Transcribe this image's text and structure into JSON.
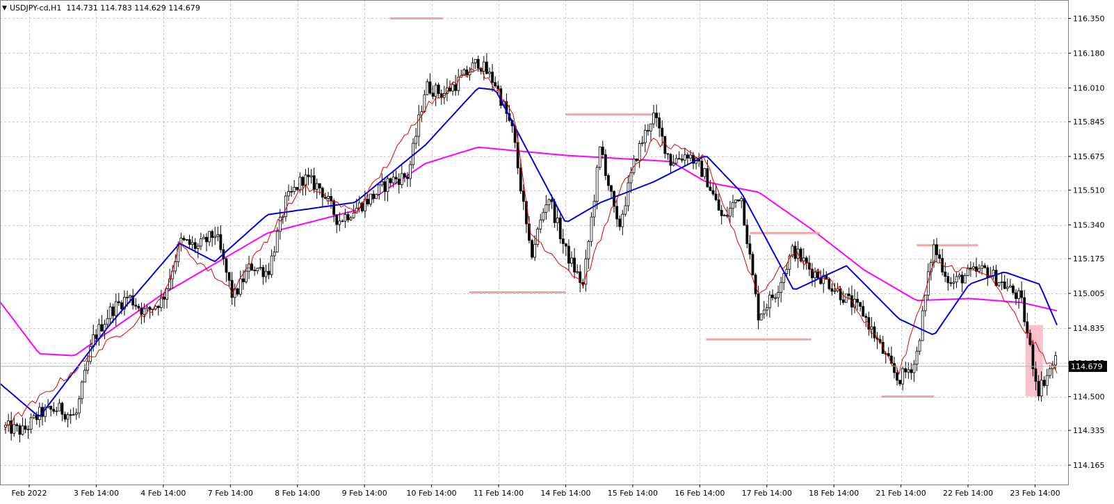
{
  "window": {
    "symbol_line": "USDJPY-cd,H1  114.731 114.783 114.629 114.679",
    "menu_glyph": "▼"
  },
  "colors": {
    "background": "#ffffff",
    "grid": "#c8c8c8",
    "candle": "#000000",
    "ma_fast": "#e00000",
    "ma_mid": "#0000e0",
    "ma_slow": "#ff00ff",
    "level_marker": "#f4a4a4",
    "highlight_box": "#f7b8c6",
    "price_tag_bg": "#000000",
    "price_tag_text": "#ffffff"
  },
  "price_axis": {
    "labels": [
      "116.350",
      "116.180",
      "116.010",
      "115.845",
      "115.675",
      "115.510",
      "115.340",
      "115.175",
      "115.005",
      "114.835",
      "114.665",
      "114.500",
      "114.335",
      "114.165"
    ],
    "current_price_label": "114.679"
  },
  "time_axis": {
    "labels": [
      "Feb 2022",
      "3 Feb 14:00",
      "4 Feb 14:00",
      "7 Feb 14:00",
      "8 Feb 14:00",
      "9 Feb 14:00",
      "10 Feb 14:00",
      "11 Feb 14:00",
      "14 Feb 14:00",
      "15 Feb 14:00",
      "16 Feb 14:00",
      "17 Feb 14:00",
      "18 Feb 14:00",
      "21 Feb 14:00",
      "22 Feb 14:00",
      "23 Feb 14:00"
    ]
  },
  "chart_data": {
    "type": "candlestick",
    "symbol": "USDJPY-cd",
    "timeframe": "H1",
    "last_bar": {
      "open": 114.731,
      "high": 114.783,
      "low": 114.629,
      "close": 114.679
    },
    "ylim": [
      114.07,
      116.44
    ],
    "grid": true,
    "price_path": [
      [
        0,
        114.35
      ],
      [
        1,
        114.33
      ],
      [
        2,
        114.42
      ],
      [
        3,
        114.44
      ],
      [
        4,
        114.4
      ],
      [
        5,
        114.78
      ],
      [
        6,
        114.92
      ],
      [
        7,
        114.99
      ],
      [
        8,
        114.91
      ],
      [
        9,
        114.98
      ],
      [
        10,
        115.26
      ],
      [
        11,
        115.23
      ],
      [
        12,
        115.3
      ],
      [
        13,
        114.98
      ],
      [
        14,
        115.14
      ],
      [
        15,
        115.11
      ],
      [
        16,
        115.45
      ],
      [
        17,
        115.57
      ],
      [
        18,
        115.52
      ],
      [
        19,
        115.36
      ],
      [
        20,
        115.42
      ],
      [
        21,
        115.48
      ],
      [
        22,
        115.56
      ],
      [
        23,
        115.58
      ],
      [
        24,
        116.02
      ],
      [
        25,
        115.98
      ],
      [
        26,
        116.05
      ],
      [
        27,
        116.14
      ],
      [
        28,
        116.03
      ],
      [
        29,
        115.79
      ],
      [
        30,
        115.18
      ],
      [
        31,
        115.49
      ],
      [
        32,
        115.21
      ],
      [
        33,
        115.04
      ],
      [
        34,
        115.73
      ],
      [
        35,
        115.31
      ],
      [
        36,
        115.67
      ],
      [
        37,
        115.88
      ],
      [
        38,
        115.65
      ],
      [
        39,
        115.69
      ],
      [
        40,
        115.58
      ],
      [
        41,
        115.36
      ],
      [
        42,
        115.5
      ],
      [
        43,
        114.9
      ],
      [
        44,
        115.01
      ],
      [
        45,
        115.22
      ],
      [
        46,
        115.12
      ],
      [
        47,
        115.06
      ],
      [
        48,
        114.98
      ],
      [
        49,
        114.91
      ],
      [
        50,
        114.74
      ],
      [
        51,
        114.58
      ],
      [
        52,
        114.67
      ],
      [
        53,
        115.24
      ],
      [
        54,
        115.05
      ],
      [
        55,
        115.1
      ],
      [
        56,
        115.12
      ],
      [
        57,
        115.05
      ],
      [
        58,
        114.98
      ],
      [
        59,
        114.53
      ],
      [
        60,
        114.68
      ]
    ],
    "moving_averages": [
      {
        "color": "#e00000",
        "values": [
          [
            0,
            114.35
          ],
          [
            5,
            114.7
          ],
          [
            9,
            114.97
          ],
          [
            10,
            115.24
          ],
          [
            13,
            115.02
          ],
          [
            17,
            115.53
          ],
          [
            20,
            115.4
          ],
          [
            24,
            115.92
          ],
          [
            27,
            116.12
          ],
          [
            29,
            115.9
          ],
          [
            30,
            115.3
          ],
          [
            33,
            115.05
          ],
          [
            35,
            115.5
          ],
          [
            37,
            115.75
          ],
          [
            40,
            115.66
          ],
          [
            43,
            115.0
          ],
          [
            45,
            115.2
          ],
          [
            48,
            115.0
          ],
          [
            51,
            114.62
          ],
          [
            53,
            115.15
          ],
          [
            56,
            115.1
          ],
          [
            59,
            114.72
          ],
          [
            60,
            114.62
          ]
        ]
      },
      {
        "color": "#0000e0",
        "values": [
          [
            -1,
            114.62
          ],
          [
            2,
            114.4
          ],
          [
            6,
            114.85
          ],
          [
            10,
            115.25
          ],
          [
            12,
            115.16
          ],
          [
            15,
            115.39
          ],
          [
            20,
            115.45
          ],
          [
            24,
            115.73
          ],
          [
            27,
            116.01
          ],
          [
            28,
            116.0
          ],
          [
            32,
            115.35
          ],
          [
            34,
            115.45
          ],
          [
            37,
            115.55
          ],
          [
            40,
            115.68
          ],
          [
            42,
            115.5
          ],
          [
            45,
            115.02
          ],
          [
            48,
            115.14
          ],
          [
            51,
            114.88
          ],
          [
            53,
            114.8
          ],
          [
            55,
            115.05
          ],
          [
            57,
            115.11
          ],
          [
            59,
            115.05
          ],
          [
            60,
            114.85
          ]
        ]
      },
      {
        "color": "#ff00ff",
        "values": [
          [
            -1,
            115.05
          ],
          [
            2,
            114.71
          ],
          [
            4,
            114.7
          ],
          [
            9,
            115.0
          ],
          [
            15,
            115.3
          ],
          [
            20,
            115.41
          ],
          [
            24,
            115.64
          ],
          [
            27,
            115.72
          ],
          [
            32,
            115.68
          ],
          [
            38,
            115.65
          ],
          [
            40,
            115.55
          ],
          [
            43,
            115.5
          ],
          [
            46,
            115.32
          ],
          [
            49,
            115.12
          ],
          [
            52,
            114.97
          ],
          [
            55,
            114.98
          ],
          [
            58,
            114.96
          ],
          [
            60,
            114.92
          ]
        ]
      }
    ],
    "horizontal_levels": [
      {
        "price": 116.35,
        "from": 22.0,
        "to": 25.0
      },
      {
        "price": 115.88,
        "from": 32.0,
        "to": 37.0
      },
      {
        "price": 115.01,
        "from": 26.5,
        "to": 32.0
      },
      {
        "price": 115.3,
        "from": 42.5,
        "to": 46.5
      },
      {
        "price": 114.78,
        "from": 40.0,
        "to": 46.0
      },
      {
        "price": 115.24,
        "from": 52.0,
        "to": 55.5
      },
      {
        "price": 114.5,
        "from": 50.0,
        "to": 53.0
      }
    ],
    "highlight_box": {
      "from": 58.2,
      "to": 59.2,
      "high": 114.85,
      "low": 114.5
    }
  }
}
